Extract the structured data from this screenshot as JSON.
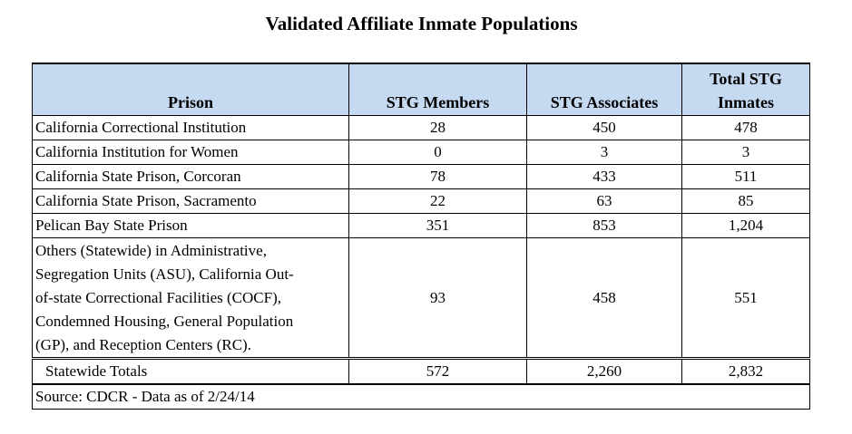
{
  "title": "Validated Affiliate Inmate Populations",
  "table": {
    "headers": {
      "prison": "Prison",
      "members": "STG Members",
      "associates": "STG Associates",
      "total_line1": "Total STG",
      "total_line2": "Inmates"
    },
    "rows": [
      {
        "prison": "California Correctional Institution",
        "members": "28",
        "associates": "450",
        "total": "478"
      },
      {
        "prison": "California Institution for Women",
        "members": "0",
        "associates": "3",
        "total": "3"
      },
      {
        "prison": "California State Prison, Corcoran",
        "members": "78",
        "associates": "433",
        "total": "511"
      },
      {
        "prison": "California State Prison, Sacramento",
        "members": "22",
        "associates": "63",
        "total": "85"
      },
      {
        "prison": "Pelican Bay State Prison",
        "members": "351",
        "associates": "853",
        "total": "1,204"
      }
    ],
    "others": {
      "lines": [
        "Others (Statewide) in Administrative,",
        "Segregation Units (ASU), California Out-",
        "of-state Correctional Facilities (COCF),",
        "Condemned Housing, General Population",
        "(GP), and Reception Centers (RC)."
      ],
      "members": "93",
      "associates": "458",
      "total": "551"
    },
    "totals": {
      "label": "Statewide Totals",
      "members": "572",
      "associates": "2,260",
      "total": "2,832"
    },
    "source": "Source: CDCR  -  Data as of 2/24/14"
  }
}
